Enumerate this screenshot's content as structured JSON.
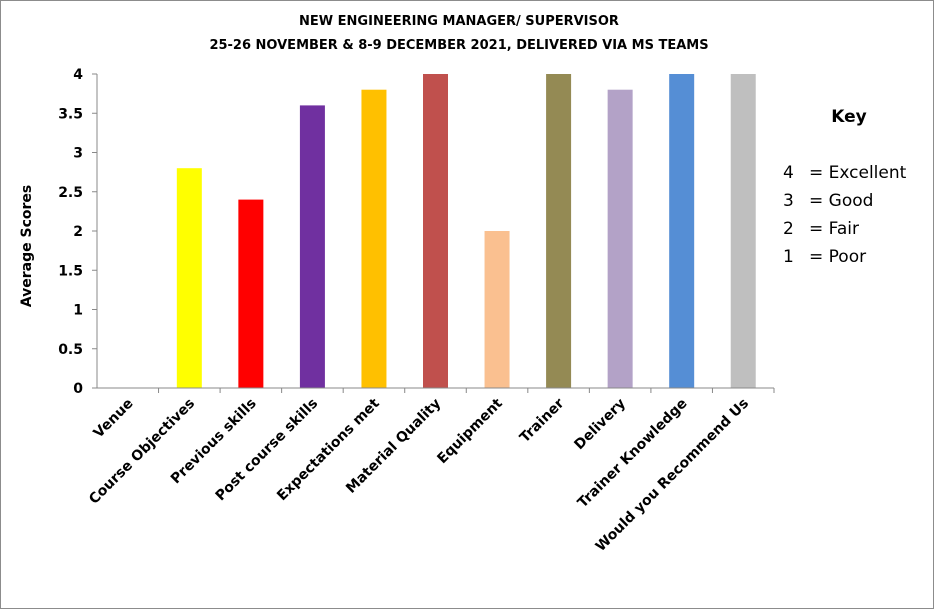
{
  "chart_data": {
    "type": "bar",
    "title": [
      "NEW ENGINEERING MANAGER/ SUPERVISOR",
      "25-26 NOVEMBER & 8-9 DECEMBER 2021, DELIVERED VIA MS TEAMS"
    ],
    "xlabel": "",
    "ylabel": "Average Scores",
    "ylim": [
      0,
      4
    ],
    "yticks": [
      "0",
      "0.5",
      "1",
      "1.5",
      "2",
      "2.5",
      "3",
      "3.5",
      "4"
    ],
    "categories": [
      "Venue",
      "Course Objectives",
      "Previous skills",
      "Post  course skills",
      "Expectations met",
      "Material Quality",
      "Equipment",
      "Trainer",
      "Delivery",
      "Trainer Knowledge",
      "Would you Recommend Us"
    ],
    "values": [
      0,
      2.8,
      2.4,
      3.6,
      3.8,
      4,
      2,
      4,
      3.8,
      4,
      4
    ],
    "colors": [
      "#ffffff",
      "#ffff00",
      "#ff0000",
      "#7030a0",
      "#ffc000",
      "#c0504d",
      "#fac090",
      "#948a54",
      "#b3a2c7",
      "#558ed5",
      "#bfbfbf"
    ],
    "grid": false,
    "legend": "none"
  },
  "key": {
    "title": "Key",
    "items": [
      {
        "num": "4",
        "label": "= Excellent"
      },
      {
        "num": "3",
        "label": "= Good"
      },
      {
        "num": "2",
        "label": "= Fair"
      },
      {
        "num": "1",
        "label": "= Poor"
      }
    ]
  }
}
